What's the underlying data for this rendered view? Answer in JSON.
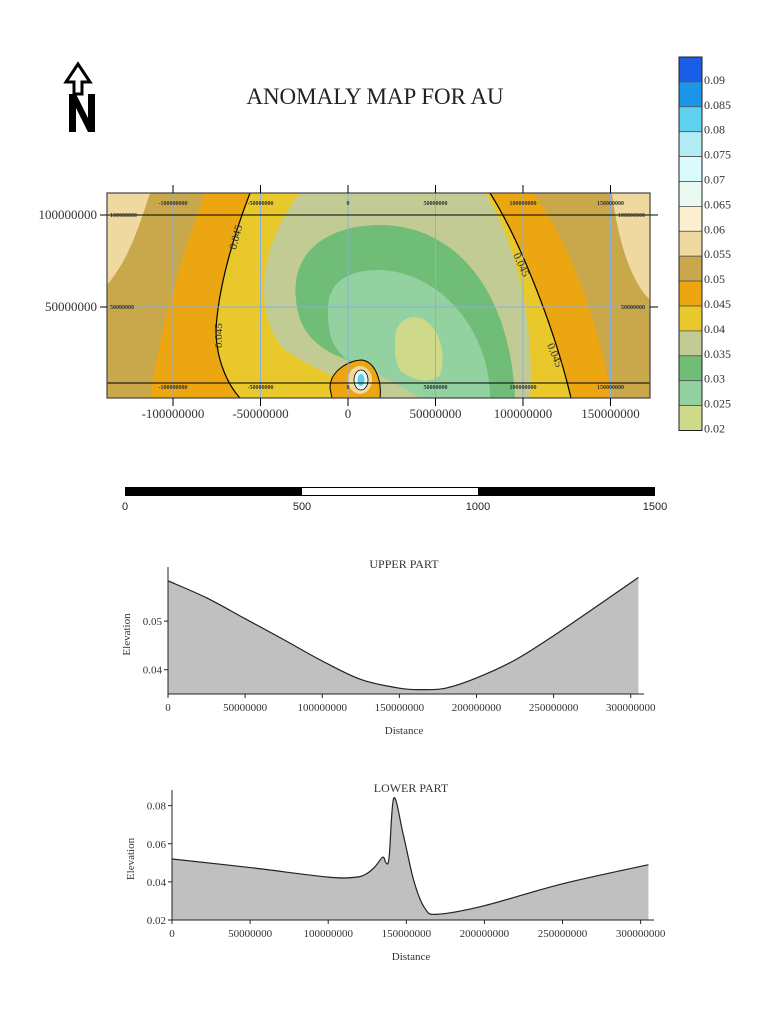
{
  "title": "ANOMALY MAP FOR AU",
  "north_arrow": {
    "label": "N",
    "icon": "north-arrow-icon"
  },
  "legend": {
    "labels": [
      "0.09",
      "0.085",
      "0.08",
      "0.075",
      "0.07",
      "0.065",
      "0.06",
      "0.055",
      "0.05",
      "0.045",
      "0.04",
      "0.035",
      "0.03",
      "0.025",
      "0.02"
    ],
    "colors": [
      "#1a5ee8",
      "#1b95e8",
      "#5fd0ee",
      "#b0ecf4",
      "#dafbfc",
      "#eafaf2",
      "#fbefcf",
      "#f0d9a0",
      "#c8a84a",
      "#eba612",
      "#e8c82a",
      "#c3cb94",
      "#6fbd76",
      "#93d1a0",
      "#cfd98a"
    ]
  },
  "scale_bar": {
    "labels": [
      "0",
      "500",
      "1000",
      "1500"
    ]
  },
  "chart_data": [
    {
      "type": "heatmap",
      "title": "ANOMALY MAP FOR AU",
      "x_ticks": [
        "-100000000",
        "-50000000",
        "0",
        "50000000",
        "100000000",
        "150000000"
      ],
      "x_tick_values": [
        -100000000,
        -50000000,
        0,
        50000000,
        100000000,
        150000000
      ],
      "y_ticks": [
        "100000000",
        "50000000"
      ],
      "y_tick_values": [
        100000000,
        50000000
      ],
      "contour_labels": [
        "0.045",
        "0.045",
        "0.045",
        "0.045"
      ],
      "xlim": [
        -135000000,
        172000000
      ],
      "ylim": [
        0,
        112000000
      ]
    },
    {
      "type": "area",
      "title": "UPPER PART",
      "xlabel": "Distance",
      "ylabel": "Elevation",
      "x_ticks": [
        "0",
        "50000000",
        "100000000",
        "150000000",
        "200000000",
        "250000000",
        "300000000"
      ],
      "y_ticks": [
        "0.04",
        "0.05"
      ],
      "xlim": [
        0,
        306000000
      ],
      "ylim": [
        0.035,
        0.0595
      ],
      "x": [
        0,
        25000000,
        50000000,
        75000000,
        100000000,
        125000000,
        150000000,
        165000000,
        180000000,
        200000000,
        225000000,
        250000000,
        280000000,
        305000000
      ],
      "y": [
        0.0583,
        0.0548,
        0.0505,
        0.0462,
        0.0418,
        0.038,
        0.0362,
        0.0359,
        0.0362,
        0.0383,
        0.042,
        0.047,
        0.0535,
        0.059
      ]
    },
    {
      "type": "area",
      "title": "LOWER PART",
      "xlabel": "Distance",
      "ylabel": "Elevation",
      "x_ticks": [
        "0",
        "50000000",
        "100000000",
        "150000000",
        "200000000",
        "250000000",
        "300000000"
      ],
      "y_ticks": [
        "0.02",
        "0.04",
        "0.06",
        "0.08"
      ],
      "xlim": [
        0,
        306000000
      ],
      "ylim": [
        0.02,
        0.084
      ],
      "x": [
        0,
        50000000,
        100000000,
        118000000,
        125000000,
        130000000,
        135000000,
        137000000,
        139000000,
        142000000,
        148000000,
        155000000,
        162000000,
        170000000,
        200000000,
        250000000,
        305000000
      ],
      "y": [
        0.052,
        0.0475,
        0.0425,
        0.0425,
        0.0445,
        0.048,
        0.053,
        0.05,
        0.053,
        0.084,
        0.065,
        0.04,
        0.026,
        0.023,
        0.0275,
        0.039,
        0.049
      ]
    }
  ]
}
